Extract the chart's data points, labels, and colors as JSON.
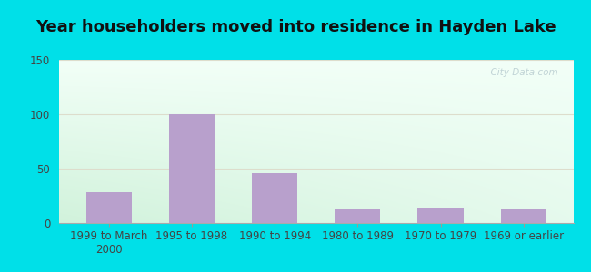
{
  "title": "Year householders moved into residence in Hayden Lake",
  "categories": [
    "1999 to March\n2000",
    "1995 to 1998",
    "1990 to 1994",
    "1980 to 1989",
    "1970 to 1979",
    "1969 or earlier"
  ],
  "values": [
    28,
    100,
    46,
    13,
    14,
    13
  ],
  "bar_color": "#b8a0cc",
  "ylim": [
    0,
    150
  ],
  "yticks": [
    0,
    50,
    100,
    150
  ],
  "bg_top_left": "#d8eeda",
  "bg_top_right": "#f0f8f0",
  "bg_bottom_left": "#c8ecd8",
  "bg_bottom_right": "#e8f8f0",
  "outer_bg": "#00e0e8",
  "title_fontsize": 13,
  "tick_fontsize": 8.5,
  "watermark": "  City-Data.com",
  "watermark_icon": "ⓘ"
}
